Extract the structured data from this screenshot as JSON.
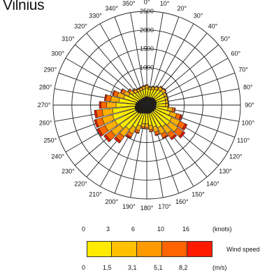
{
  "header": {
    "title": "Vilnius"
  },
  "chart_data": {
    "type": "polar-bar",
    "title": "Vilnius",
    "radial_scale": {
      "ticks": [
        500,
        1000,
        1500,
        2000,
        2500
      ],
      "tick_labels": [
        "",
        "1000",
        "1500",
        "2000",
        "2500"
      ],
      "max": 2500
    },
    "direction_labels": [
      "0°",
      "10°",
      "20°",
      "30°",
      "40°",
      "50°",
      "60°",
      "70°",
      "80°",
      "90°",
      "100°",
      "110°",
      "120°",
      "130°",
      "140°",
      "150°",
      "160°",
      "170°",
      "180°",
      "190°",
      "200°",
      "210°",
      "220°",
      "230°",
      "240°",
      "250°",
      "260°",
      "270°",
      "280°",
      "290°",
      "300°",
      "310°",
      "320°",
      "330°",
      "340°",
      "350°"
    ],
    "directions": [
      0,
      10,
      20,
      30,
      40,
      50,
      60,
      70,
      80,
      90,
      100,
      110,
      120,
      130,
      140,
      150,
      160,
      170,
      180,
      190,
      200,
      210,
      220,
      230,
      240,
      250,
      260,
      270,
      280,
      290,
      300,
      310,
      320,
      330,
      340,
      350
    ],
    "speed_classes": [
      {
        "name": "0–1.5 m/s",
        "color": "#1f1a10",
        "values": [
          230,
          220,
          220,
          230,
          250,
          260,
          260,
          270,
          260,
          250,
          250,
          250,
          240,
          240,
          230,
          230,
          230,
          230,
          220,
          220,
          230,
          250,
          280,
          310,
          320,
          330,
          320,
          300,
          290,
          260,
          240,
          220,
          210,
          210,
          210,
          220
        ]
      },
      {
        "name": "1.5–3.1 m/s",
        "color": "#ffec00",
        "values": [
          220,
          200,
          220,
          240,
          260,
          270,
          260,
          250,
          250,
          250,
          320,
          400,
          500,
          520,
          480,
          440,
          380,
          320,
          280,
          280,
          350,
          420,
          520,
          580,
          620,
          620,
          600,
          520,
          460,
          380,
          300,
          250,
          220,
          200,
          200,
          210
        ]
      },
      {
        "name": "3.1–5.1 m/s",
        "color": "#ffb000",
        "values": [
          70,
          60,
          70,
          80,
          90,
          90,
          70,
          60,
          60,
          70,
          120,
          180,
          240,
          260,
          230,
          190,
          140,
          110,
          90,
          90,
          130,
          180,
          240,
          280,
          300,
          290,
          280,
          250,
          220,
          180,
          140,
          100,
          80,
          70,
          70,
          70
        ]
      },
      {
        "name": "5.1–8.2 m/s",
        "color": "#ff6a00",
        "values": [
          20,
          15,
          15,
          20,
          20,
          20,
          15,
          15,
          15,
          20,
          60,
          110,
          160,
          180,
          150,
          110,
          80,
          50,
          40,
          40,
          60,
          100,
          150,
          180,
          180,
          170,
          160,
          150,
          130,
          110,
          80,
          50,
          30,
          20,
          20,
          20
        ]
      },
      {
        "name": "8.2+ m/s",
        "color": "#e81a00",
        "values": [
          5,
          5,
          5,
          5,
          5,
          5,
          5,
          5,
          5,
          5,
          20,
          40,
          60,
          60,
          50,
          30,
          20,
          10,
          10,
          10,
          20,
          40,
          60,
          60,
          60,
          50,
          50,
          50,
          40,
          30,
          20,
          10,
          10,
          5,
          5,
          5
        ]
      }
    ]
  },
  "legend": {
    "knots_values": [
      "0",
      "3",
      "6",
      "10",
      "16"
    ],
    "knots_unit": "(knots)",
    "ms_values": [
      "0",
      "1,5",
      "3,1",
      "5,1",
      "8,2"
    ],
    "ms_unit": "(m/s)",
    "title": "Wind speed",
    "colors": [
      "#ffea00",
      "#ffc000",
      "#ff9a00",
      "#ff6400",
      "#ff1a00"
    ]
  }
}
